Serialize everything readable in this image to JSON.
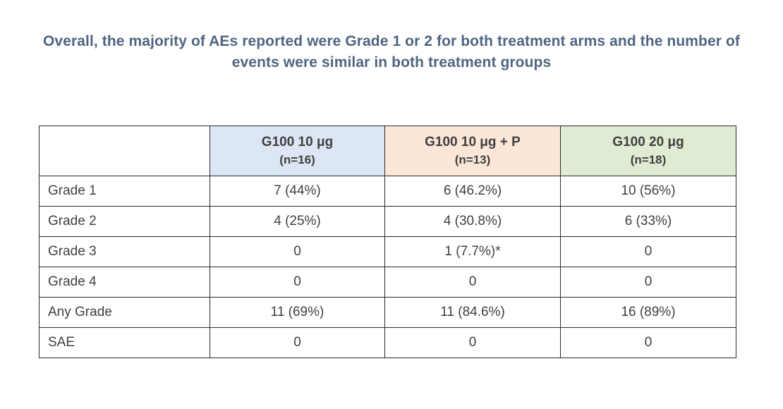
{
  "headline": {
    "line1": "Overall, the majority of AEs reported were Grade 1 or 2 for both treatment arms and the number of",
    "line2": "events were similar in both treatment groups"
  },
  "table": {
    "columns": [
      {
        "name": "G100 10 μg",
        "n": "(n=16)",
        "color": "#dce6f4"
      },
      {
        "name": "G100 10 μg + P",
        "n": "(n=13)",
        "color": "#fbe6d8"
      },
      {
        "name": "G100 20 μg",
        "n": "(n=18)",
        "color": "#e0ebd3"
      }
    ],
    "rows": [
      {
        "label": "Grade 1",
        "values": [
          "7 (44%)",
          "6 (46.2%)",
          "10 (56%)"
        ]
      },
      {
        "label": "Grade 2",
        "values": [
          "4 (25%)",
          "4 (30.8%)",
          "6 (33%)"
        ]
      },
      {
        "label": "Grade 3",
        "values": [
          "0",
          "1 (7.7%)*",
          "0"
        ]
      },
      {
        "label": "Grade 4",
        "values": [
          "0",
          "0",
          "0"
        ]
      },
      {
        "label": "Any Grade",
        "values": [
          "11 (69%)",
          "11 (84.6%)",
          "16 (89%)"
        ]
      },
      {
        "label": "SAE",
        "values": [
          "0",
          "0",
          "0"
        ]
      }
    ]
  }
}
